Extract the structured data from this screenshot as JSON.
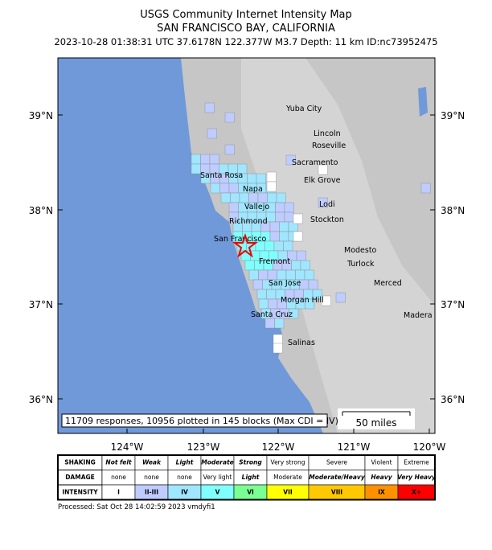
{
  "header": {
    "title": "USGS Community Internet Intensity Map",
    "region": "SAN FRANCISCO BAY, CALIFORNIA",
    "event": "2023-10-28 01:38:31 UTC 37.6178N 122.377W M3.7 Depth: 11 km ID:nc73952475"
  },
  "map": {
    "cities": [
      "Yuba City",
      "Lincoln",
      "Roseville",
      "Sacramento",
      "Santa Rosa",
      "Elk Grove",
      "Napa",
      "Vallejo",
      "Lodi",
      "Richmond",
      "Stockton",
      "San Francisco",
      "Modesto",
      "Fremont",
      "Turlock",
      "San Jose",
      "Merced",
      "Morgan Hill",
      "Santa Cruz",
      "Madera",
      "Salinas"
    ],
    "lat_labels": [
      "39°N",
      "38°N",
      "37°N",
      "36°N"
    ],
    "lon_labels": [
      "124°W",
      "123°W",
      "122°W",
      "121°W",
      "120°W"
    ],
    "summary": "11709 responses, 10956 plotted in 145 blocks (Max CDI = IV)",
    "scale_bar": "50 miles"
  },
  "legend": {
    "rows": [
      {
        "label": "SHAKING",
        "cells": [
          "Not felt",
          "Weak",
          "Light",
          "Moderate",
          "Strong",
          "Very strong",
          "Severe",
          "Violent",
          "Extreme"
        ]
      },
      {
        "label": "DAMAGE",
        "cells": [
          "none",
          "none",
          "none",
          "Very light",
          "Light",
          "Moderate",
          "Moderate/Heavy",
          "Heavy",
          "Very Heavy"
        ]
      },
      {
        "label": "INTENSITY",
        "cells": [
          "I",
          "II-III",
          "IV",
          "V",
          "VI",
          "VII",
          "VIII",
          "IX",
          "X+"
        ]
      }
    ]
  },
  "footer": "Processed: Sat Oct 28 14:02:59 2023 vmdyfi1"
}
